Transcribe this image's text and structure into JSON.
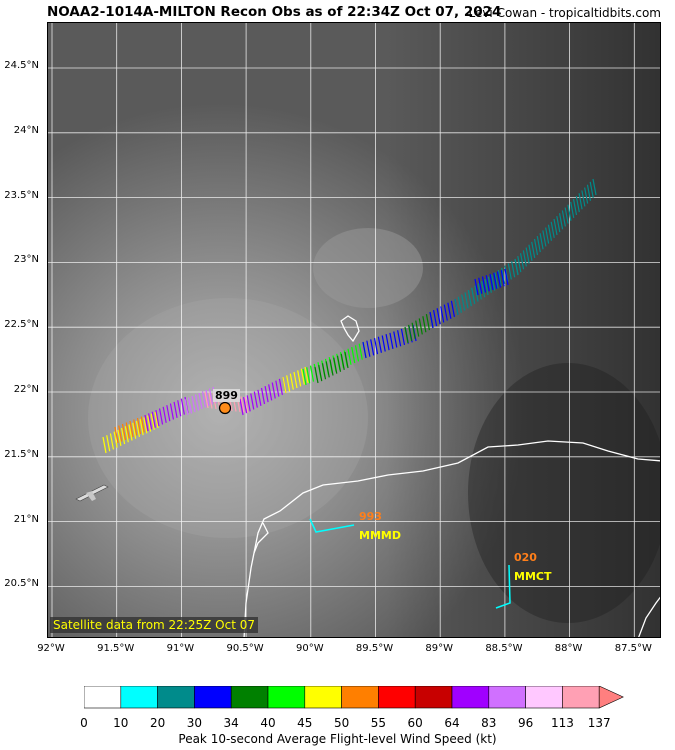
{
  "title": "NOAA2-1014A-MILTON Recon Obs as of 22:34Z Oct 07, 2024",
  "credit": "Levi Cowan - tropicaltidbits.com",
  "satellite_note": "Satellite data from 22:25Z Oct 07",
  "lat_ticks": [
    "24.5°N",
    "24°N",
    "23.5°N",
    "23°N",
    "22.5°N",
    "22°N",
    "21.5°N",
    "21°N",
    "20.5°N"
  ],
  "lon_ticks": [
    "92°W",
    "91.5°W",
    "91°W",
    "90.5°W",
    "90°W",
    "89.5°W",
    "89°W",
    "88.5°W",
    "88°W",
    "87.5°W"
  ],
  "center_pressure": "899",
  "stations": [
    {
      "code": "MMMD",
      "value": "993"
    },
    {
      "code": "MMCT",
      "value": "020"
    }
  ],
  "colorbar": {
    "label": "Peak 10-second Average Flight-level Wind Speed (kt)",
    "ticks": [
      "0",
      "10",
      "20",
      "30",
      "34",
      "40",
      "45",
      "50",
      "55",
      "60",
      "64",
      "83",
      "96",
      "113",
      "137"
    ],
    "colors": [
      "#ffffff",
      "#00ffff",
      "#008b8b",
      "#0000ff",
      "#008000",
      "#00ff00",
      "#ffff00",
      "#ff7f00",
      "#ff0000",
      "#c80000",
      "#a000ff",
      "#d070ff",
      "#ffc8ff",
      "#ffa0b4"
    ],
    "extend_color": "#ff7f7f"
  },
  "colors": {
    "coast": "#ffffff",
    "station_line": "#00ffff"
  }
}
